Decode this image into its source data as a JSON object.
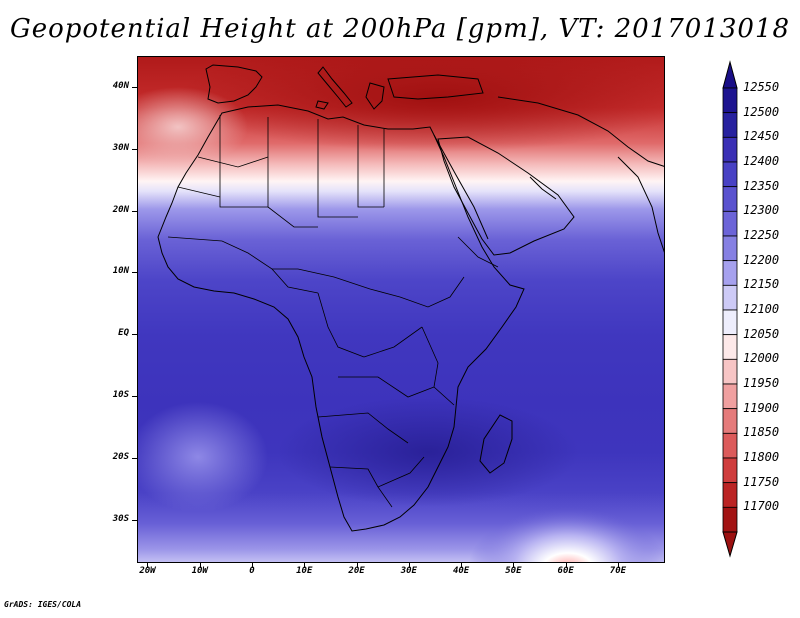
{
  "title": "Geopotential Height at 200hPa [gpm], VT: 2017013018",
  "credit": "GrADS: IGES/COLA",
  "lat_labels": [
    {
      "text": "40N",
      "lat": 40
    },
    {
      "text": "30N",
      "lat": 30
    },
    {
      "text": "20N",
      "lat": 20
    },
    {
      "text": "10N",
      "lat": 10
    },
    {
      "text": "EQ",
      "lat": 0
    },
    {
      "text": "10S",
      "lat": -10
    },
    {
      "text": "20S",
      "lat": -20
    },
    {
      "text": "30S",
      "lat": -30
    }
  ],
  "lon_labels": [
    {
      "text": "20W",
      "lon": -20
    },
    {
      "text": "10W",
      "lon": -10
    },
    {
      "text": "0",
      "lon": 0
    },
    {
      "text": "10E",
      "lon": 10
    },
    {
      "text": "20E",
      "lon": 20
    },
    {
      "text": "30E",
      "lon": 30
    },
    {
      "text": "40E",
      "lon": 40
    },
    {
      "text": "50E",
      "lon": 50
    },
    {
      "text": "60E",
      "lon": 60
    },
    {
      "text": "70E",
      "lon": 70
    }
  ],
  "domain": {
    "lon_min": -22,
    "lon_max": 79,
    "lat_min": -37,
    "lat_max": 45
  },
  "colorbar": {
    "levels": [
      "12550",
      "12500",
      "12450",
      "12400",
      "12350",
      "12300",
      "12250",
      "12200",
      "12150",
      "12100",
      "12050",
      "12000",
      "11950",
      "11900",
      "11850",
      "11800",
      "11750",
      "11700"
    ],
    "colors": [
      "#1d1490",
      "#27219f",
      "#3a2fb5",
      "#4841c4",
      "#5a52cf",
      "#6c64d8",
      "#8680e3",
      "#a6a1ee",
      "#cdcaf6",
      "#eeeefc",
      "#fde9e9",
      "#f7c5c5",
      "#f0a0a0",
      "#e57b7b",
      "#dc5b5b",
      "#cf3d3d",
      "#bb2424",
      "#a21313"
    ],
    "top_color": "#1a0f87",
    "bottom_color": "#9c1111"
  }
}
